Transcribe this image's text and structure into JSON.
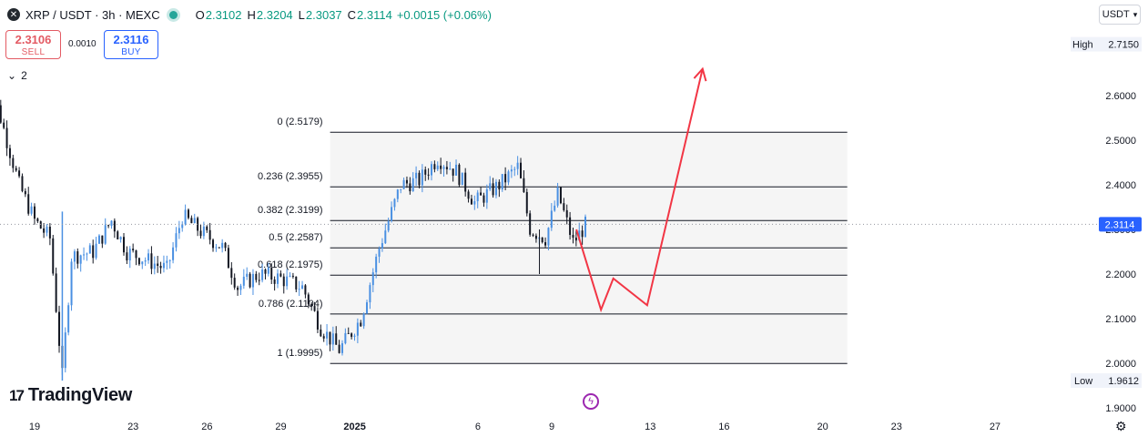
{
  "header": {
    "symbol": "XRP / USDT · 3h · MEXC",
    "open_label": "O",
    "open": "2.3102",
    "high_label": "H",
    "high": "2.3204",
    "low_label": "L",
    "low": "2.3037",
    "close_label": "C",
    "close": "2.3114",
    "change": "+0.0015 (+0.06%)"
  },
  "trade": {
    "sell_price": "2.3106",
    "sell_label": "SELL",
    "spread": "0.0010",
    "buy_price": "2.3116",
    "buy_label": "BUY"
  },
  "indicators_count": "2",
  "currency_button": "USDT",
  "branding": "TradingView",
  "colors": {
    "up": "#4a90e2",
    "down": "#131722",
    "projection": "#f23645",
    "last_price_tag": "#2962ff"
  },
  "chart_data": {
    "type": "candlestick",
    "yaxis": {
      "ticks": [
        "2.6000",
        "2.5000",
        "2.4000",
        "2.3000",
        "2.2000",
        "2.1000",
        "2.0000",
        "1.9000"
      ],
      "tick_values": [
        2.6,
        2.5,
        2.4,
        2.3,
        2.2,
        2.1,
        2.0,
        1.9
      ],
      "range": [
        1.87,
        2.77
      ]
    },
    "xaxis": {
      "ticks": [
        "19",
        "23",
        "26",
        "29",
        "2025",
        "6",
        "9",
        "13",
        "16",
        "20",
        "23",
        "27"
      ],
      "tick_dates": [
        "2024-12-19",
        "2024-12-23",
        "2024-12-26",
        "2024-12-29",
        "2025-01-01",
        "2025-01-06",
        "2025-01-09",
        "2025-01-13",
        "2025-01-16",
        "2025-01-20",
        "2025-01-23",
        "2025-01-27"
      ]
    },
    "high_marker": {
      "label": "High",
      "value": "2.7150"
    },
    "low_marker": {
      "label": "Low",
      "value": "1.9612"
    },
    "last_price": "2.3114",
    "fibonacci": {
      "levels": [
        {
          "label": "0 (2.5179)",
          "value": 2.5179
        },
        {
          "label": "0.236 (2.3955)",
          "value": 2.3955
        },
        {
          "label": "0.382 (2.3199)",
          "value": 2.3199
        },
        {
          "label": "0.5 (2.2587)",
          "value": 2.2587
        },
        {
          "label": "0.618 (2.1975)",
          "value": 2.1975
        },
        {
          "label": "0.786 (2.1104)",
          "value": 2.1104
        },
        {
          "label": "1 (1.9995)",
          "value": 1.9995
        }
      ],
      "start": "2024-12-31",
      "end": "2025-01-21"
    },
    "projection_path": [
      {
        "date": "2025-01-10 00:00",
        "price": 2.3
      },
      {
        "date": "2025-01-11 00:00",
        "price": 2.12
      },
      {
        "date": "2025-01-11 12:00",
        "price": 2.19
      },
      {
        "date": "2025-01-12 21:00",
        "price": 2.13
      },
      {
        "date": "2025-01-15 03:00",
        "price": 2.66
      }
    ],
    "price_path": [
      {
        "date": "2024-12-17 00:00",
        "price": 2.66
      },
      {
        "date": "2024-12-17 15:00",
        "price": 2.55
      },
      {
        "date": "2024-12-18 09:00",
        "price": 2.4
      },
      {
        "date": "2024-12-19 00:00",
        "price": 2.32
      },
      {
        "date": "2024-12-19 15:00",
        "price": 2.28
      },
      {
        "date": "2024-12-20 03:00",
        "price": 1.97
      },
      {
        "date": "2024-12-20 12:00",
        "price": 2.24
      },
      {
        "date": "2024-12-21 09:00",
        "price": 2.25
      },
      {
        "date": "2024-12-22 03:00",
        "price": 2.32
      },
      {
        "date": "2024-12-22 18:00",
        "price": 2.25
      },
      {
        "date": "2024-12-23 15:00",
        "price": 2.23
      },
      {
        "date": "2024-12-24 09:00",
        "price": 2.21
      },
      {
        "date": "2024-12-25 00:00",
        "price": 2.33
      },
      {
        "date": "2024-12-25 21:00",
        "price": 2.29
      },
      {
        "date": "2024-12-26 15:00",
        "price": 2.26
      },
      {
        "date": "2024-12-27 06:00",
        "price": 2.17
      },
      {
        "date": "2024-12-28 03:00",
        "price": 2.2
      },
      {
        "date": "2024-12-29 00:00",
        "price": 2.19
      },
      {
        "date": "2024-12-29 21:00",
        "price": 2.17
      },
      {
        "date": "2024-12-30 15:00",
        "price": 2.08
      },
      {
        "date": "2024-12-31 09:00",
        "price": 2.03
      },
      {
        "date": "2025-01-01 06:00",
        "price": 2.1
      },
      {
        "date": "2025-01-02 00:00",
        "price": 2.26
      },
      {
        "date": "2025-01-02 21:00",
        "price": 2.4
      },
      {
        "date": "2025-01-03 15:00",
        "price": 2.41
      },
      {
        "date": "2025-01-04 09:00",
        "price": 2.46
      },
      {
        "date": "2025-01-05 03:00",
        "price": 2.43
      },
      {
        "date": "2025-01-05 21:00",
        "price": 2.36
      },
      {
        "date": "2025-01-06 21:00",
        "price": 2.4
      },
      {
        "date": "2025-01-07 15:00",
        "price": 2.44
      },
      {
        "date": "2025-01-08 03:00",
        "price": 2.3
      },
      {
        "date": "2025-01-08 18:00",
        "price": 2.28
      },
      {
        "date": "2025-01-09 06:00",
        "price": 2.38
      },
      {
        "date": "2025-01-09 21:00",
        "price": 2.27
      },
      {
        "date": "2025-01-10 09:00",
        "price": 2.31
      }
    ]
  }
}
